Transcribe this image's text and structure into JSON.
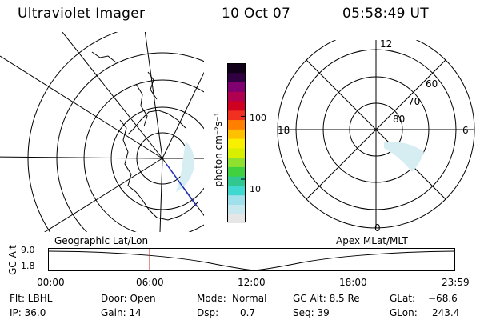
{
  "header": {
    "title": "Ultraviolet Imager",
    "date": "10 Oct 07",
    "time": "05:58:49 UT"
  },
  "colorbar": {
    "unit_label": "photon cm⁻²s⁻¹",
    "ticks": [
      "100",
      "10"
    ],
    "tick_values": [
      100,
      10
    ],
    "range": [
      2,
      700
    ],
    "scale": "log",
    "colors": [
      "#e6e6e6",
      "#c8e8f0",
      "#9fe0ea",
      "#40d8d0",
      "#30c890",
      "#40d040",
      "#90e030",
      "#d8f000",
      "#f8f000",
      "#ffc000",
      "#ff8000",
      "#f03020",
      "#d00020",
      "#b00050",
      "#800070",
      "#300040",
      "#100018"
    ]
  },
  "panels": {
    "left_label": "Geographic Lat/Lon",
    "right_label": "Apex MLat/MLT"
  },
  "polar_grid": {
    "mlt_labels": [
      "12",
      "6",
      "0",
      "18"
    ],
    "mlat_labels": [
      "60",
      "70",
      "80"
    ]
  },
  "timeline": {
    "y_axis_label": "GC Alt",
    "y_ticks": [
      "9.0",
      "1.8"
    ],
    "x_ticks": [
      "00:00",
      "06:00",
      "12:00",
      "18:00",
      "23:59"
    ],
    "cursor_time": "05:58:49"
  },
  "info": {
    "flt": "Flt: LBHL",
    "ip": "IP: 36.0",
    "door": "Door: Open",
    "gain": "Gain: 14",
    "mode_label": "Mode:",
    "mode_value": "Normal",
    "dsp_label": "Dsp:",
    "dsp_value": "0.7",
    "gcalt": "GC Alt: 8.5 Re",
    "seq": "Seq: 39",
    "glat_label": "GLat:",
    "glat_value": "−68.6",
    "glon_label": "GLon:",
    "glon_value": "243.4"
  }
}
